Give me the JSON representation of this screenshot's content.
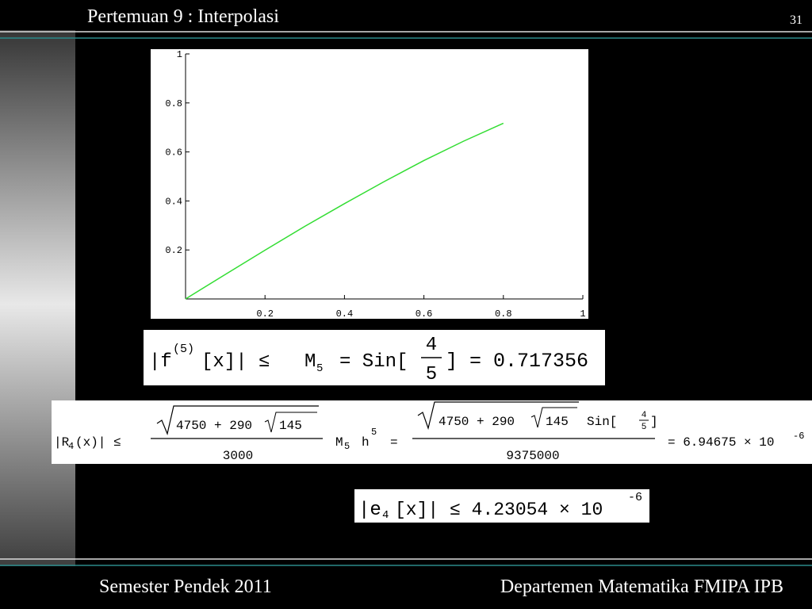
{
  "header": {
    "title": "Pertemuan 9 : Interpolasi",
    "page": "31"
  },
  "footer": {
    "left": "Semester Pendek 2011",
    "right": "Departemen Matematika FMIPA IPB"
  },
  "chart_data": {
    "type": "line",
    "x": [
      0,
      0.1,
      0.2,
      0.3,
      0.4,
      0.5,
      0.6,
      0.7,
      0.8
    ],
    "series": [
      {
        "color": "#33dd33",
        "values": [
          0,
          0.1,
          0.199,
          0.296,
          0.389,
          0.479,
          0.565,
          0.644,
          0.717
        ]
      }
    ],
    "xlim": [
      0,
      1
    ],
    "ylim": [
      0,
      1
    ],
    "xticks": [
      0.2,
      0.4,
      0.6,
      0.8,
      1
    ],
    "yticks": [
      0.2,
      0.4,
      0.6,
      0.8,
      1
    ]
  },
  "formulas": [
    {
      "a": "|f",
      "b": "(5)",
      "c": "[x]|  ≤",
      "d": "M",
      "e": "5",
      "f": "= Sin[",
      "g": "4",
      "h": "5",
      "i": "] = 0.717356"
    },
    {
      "a": "|R",
      "b": "4",
      "c": "(x)|  ≤",
      "d": "4750 + 290",
      "e": "145",
      "f": "3000",
      "g": "M",
      "h": "5",
      "i": "h",
      "j": "5",
      "k": "=",
      "l": "4750 + 290",
      "m": "145",
      "n": "Sin[",
      "o": "4",
      "p": "5",
      "q": "]",
      "r": "9375000",
      "s": "= 6.94675 × 10",
      "t": "-6"
    },
    {
      "a": "|e",
      "b": "4",
      "c": "[x]|  ≤  4.23054 × 10",
      "d": "-6"
    }
  ]
}
